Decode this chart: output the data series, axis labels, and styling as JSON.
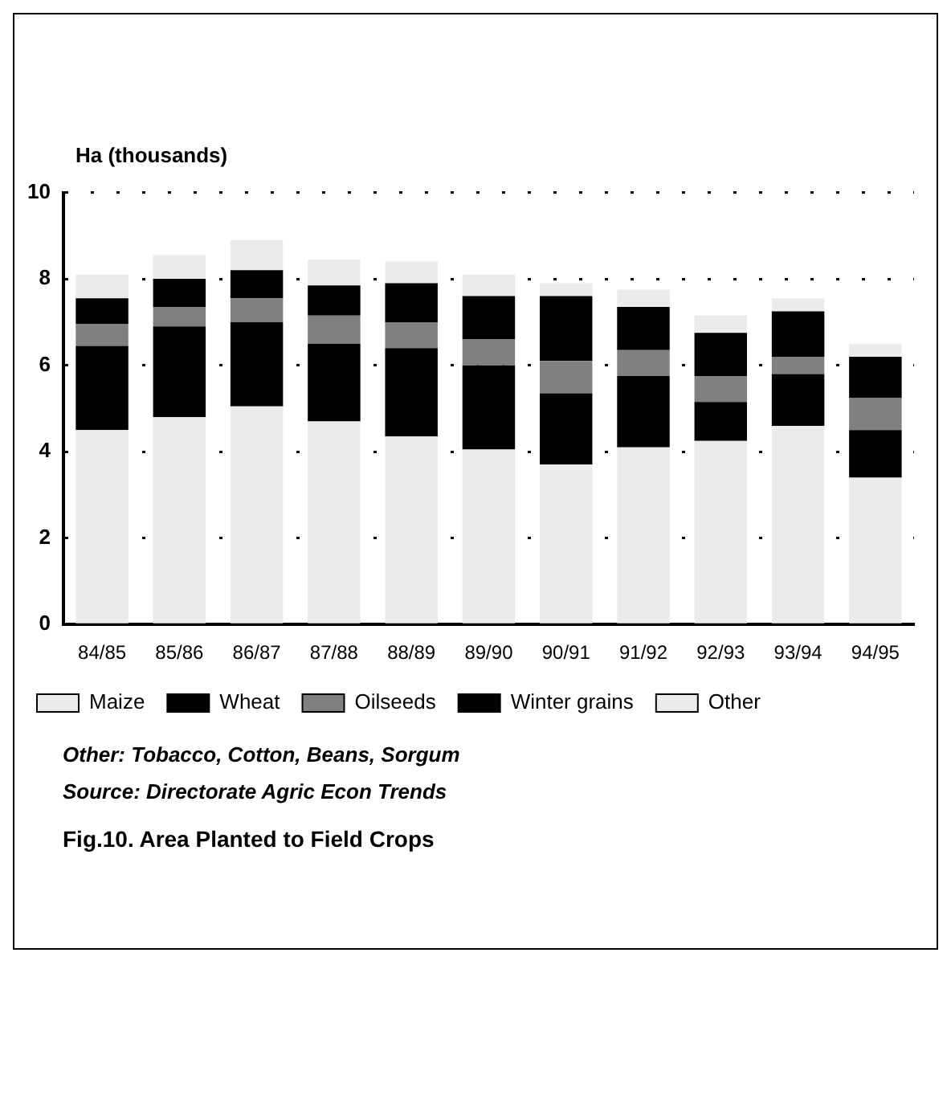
{
  "chart_data": {
    "type": "bar",
    "title": "Fig.10. Area Planted to Field Crops",
    "ylabel": "Ha (thousands)",
    "annotations": [
      "Other: Tobacco, Cotton, Beans, Sorgum",
      "Source: Directorate Agric Econ Trends"
    ],
    "categories": [
      "84/85",
      "85/86",
      "86/87",
      "87/88",
      "88/89",
      "89/90",
      "90/91",
      "91/92",
      "92/93",
      "93/94",
      "94/95"
    ],
    "stacked": true,
    "ylim": [
      0,
      10
    ],
    "yticks": [
      0,
      2,
      4,
      6,
      8,
      10
    ],
    "grid": "y",
    "legend": "bottom",
    "series": [
      {
        "name": "Maize",
        "color": "#ebebeb",
        "values": [
          4.5,
          4.8,
          5.05,
          4.7,
          4.35,
          4.05,
          3.7,
          4.1,
          4.25,
          4.6,
          3.4
        ]
      },
      {
        "name": "Wheat",
        "color": "#000000",
        "values": [
          1.95,
          2.1,
          1.95,
          1.8,
          2.05,
          1.95,
          1.65,
          1.65,
          0.9,
          1.2,
          1.1
        ]
      },
      {
        "name": "Oilseeds",
        "color": "#808080",
        "values": [
          0.5,
          0.45,
          0.55,
          0.65,
          0.6,
          0.6,
          0.75,
          0.6,
          0.6,
          0.4,
          0.75
        ]
      },
      {
        "name": "Winter grains",
        "color": "#000000",
        "values": [
          0.6,
          0.65,
          0.65,
          0.7,
          0.9,
          1.0,
          1.5,
          1.0,
          1.0,
          1.05,
          0.95
        ]
      },
      {
        "name": "Other",
        "color": "#ebebeb",
        "values": [
          0.55,
          0.55,
          0.7,
          0.6,
          0.5,
          0.5,
          0.3,
          0.4,
          0.4,
          0.3,
          0.3
        ]
      }
    ]
  }
}
